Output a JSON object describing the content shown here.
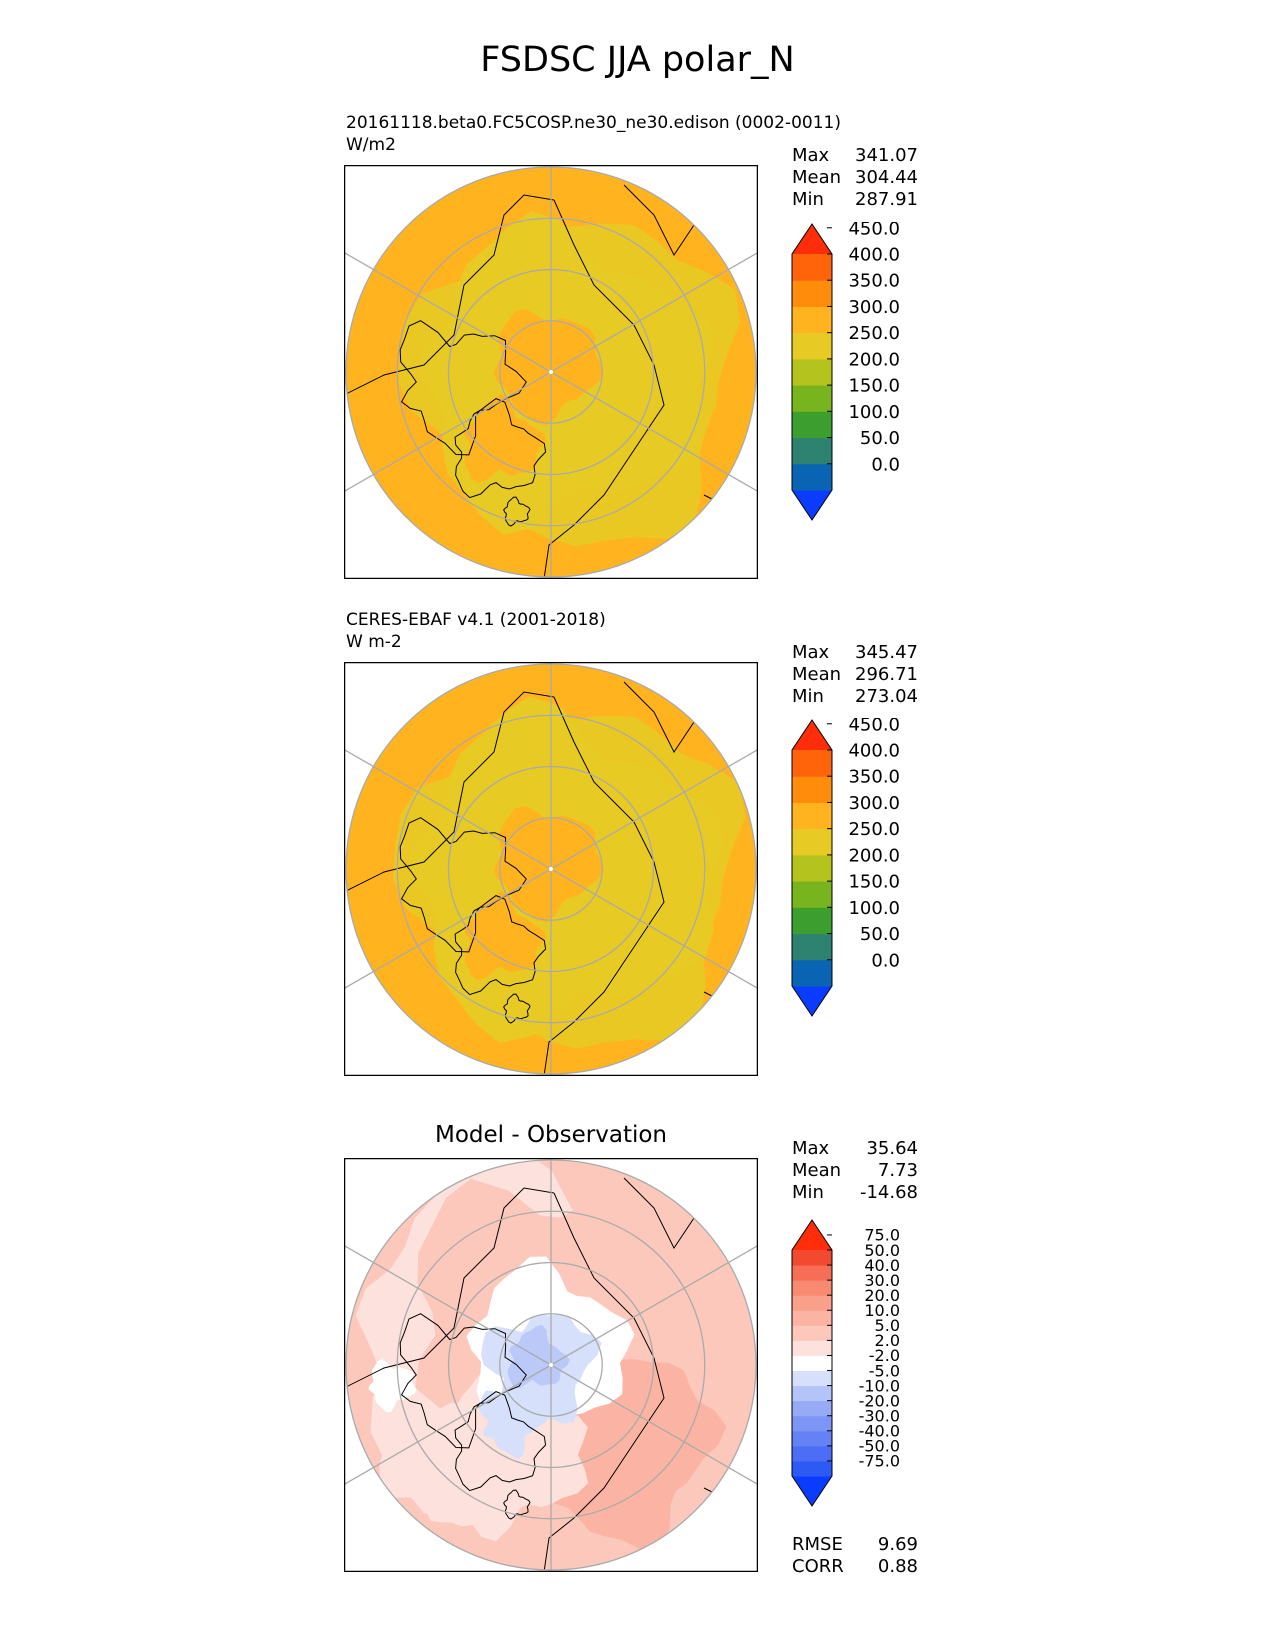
{
  "title": "FSDSC JJA polar_N",
  "chart_data": [
    {
      "type": "heatmap",
      "projection": "north-polar-stereographic",
      "label_left": "20161118.beta0.FC5COSP.ne30_ne30.edison (0002-0011)",
      "units": "W/m2",
      "stats": [
        {
          "name": "Max",
          "value": "341.07"
        },
        {
          "name": "Mean",
          "value": "304.44"
        },
        {
          "name": "Min",
          "value": "287.91"
        }
      ],
      "colorbar": {
        "levels": [
          "0.0",
          "50.0",
          "100.0",
          "150.0",
          "200.0",
          "250.0",
          "300.0",
          "350.0",
          "400.0",
          "450.0"
        ],
        "colors": [
          "#0a3cff",
          "#0a64b4",
          "#2e8270",
          "#3c9e2e",
          "#78b41e",
          "#b4c31e",
          "#e8ca25",
          "#ffb31e",
          "#ff8c0a",
          "#ff640a",
          "#ff2d0a"
        ]
      }
    },
    {
      "type": "heatmap",
      "projection": "north-polar-stereographic",
      "label_left": "CERES-EBAF v4.1 (2001-2018)",
      "units": "W m-2",
      "stats": [
        {
          "name": "Max",
          "value": "345.47"
        },
        {
          "name": "Mean",
          "value": "296.71"
        },
        {
          "name": "Min",
          "value": "273.04"
        }
      ],
      "colorbar": {
        "levels": [
          "0.0",
          "50.0",
          "100.0",
          "150.0",
          "200.0",
          "250.0",
          "300.0",
          "350.0",
          "400.0",
          "450.0"
        ],
        "colors": [
          "#0a3cff",
          "#0a64b4",
          "#2e8270",
          "#3c9e2e",
          "#78b41e",
          "#b4c31e",
          "#e8ca25",
          "#ffb31e",
          "#ff8c0a",
          "#ff640a",
          "#ff2d0a"
        ]
      }
    },
    {
      "type": "heatmap",
      "projection": "north-polar-stereographic",
      "title": "Model - Observation",
      "stats": [
        {
          "name": "Max",
          "value": "35.64"
        },
        {
          "name": "Mean",
          "value": "7.73"
        },
        {
          "name": "Min",
          "value": "-14.68"
        }
      ],
      "extra_stats": [
        {
          "name": "RMSE",
          "value": "9.69"
        },
        {
          "name": "CORR",
          "value": "0.88"
        }
      ],
      "colorbar": {
        "levels": [
          "-75.0",
          "-50.0",
          "-40.0",
          "-30.0",
          "-20.0",
          "-10.0",
          "-5.0",
          "-2.0",
          "2.0",
          "5.0",
          "10.0",
          "20.0",
          "30.0",
          "40.0",
          "50.0",
          "75.0"
        ],
        "colors": [
          "#0a3cff",
          "#2d5af5",
          "#4b6ef5",
          "#6482f5",
          "#7d96f5",
          "#96aaf5",
          "#b4c3f8",
          "#d7e0fa",
          "#ffffff",
          "#fde1dc",
          "#fcc8bc",
          "#fbb4a3",
          "#f9a08a",
          "#f78a70",
          "#f56e55",
          "#f24a30",
          "#ff2d0a"
        ]
      }
    }
  ]
}
